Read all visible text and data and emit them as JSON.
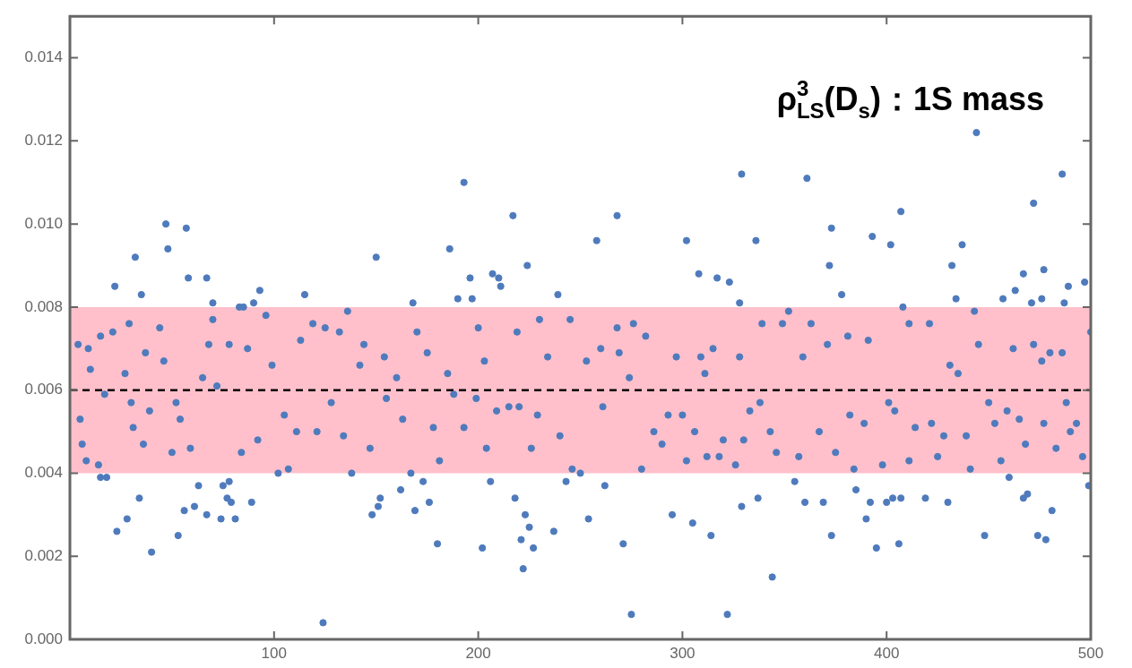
{
  "chart_data": {
    "type": "scatter",
    "annotations": [
      "ρ$^{3}$$_{LS}$(D$_{s}$)：1S mass"
    ],
    "x": [
      22,
      32,
      35,
      47,
      48,
      57,
      58,
      67,
      70,
      83,
      85,
      90,
      93,
      115,
      150,
      168,
      186,
      193,
      196,
      197,
      190,
      207,
      210,
      211,
      217,
      224,
      239,
      15,
      18,
      23,
      28,
      34,
      40,
      53,
      56,
      61,
      63,
      67,
      74,
      75,
      77,
      78,
      79,
      81,
      89,
      124,
      148,
      151,
      152,
      162,
      169,
      173,
      176,
      180,
      202,
      206,
      218,
      221,
      222,
      223,
      225,
      227,
      237,
      243,
      4,
      9,
      10,
      15,
      17,
      5,
      6,
      8,
      14,
      21,
      27,
      29,
      30,
      31,
      36,
      37,
      39,
      44,
      46,
      50,
      52,
      54,
      59,
      65,
      68,
      70,
      72,
      78,
      84,
      87,
      92,
      96,
      99,
      102,
      105,
      107,
      111,
      113,
      119,
      121,
      125,
      128,
      132,
      134,
      136,
      138,
      142,
      144,
      147,
      154,
      155,
      160,
      163,
      167,
      170,
      175,
      178,
      181,
      185,
      188,
      193,
      199,
      200,
      203,
      204,
      209,
      215,
      219,
      220,
      226,
      229,
      230,
      234,
      240,
      245,
      246,
      258,
      268,
      302,
      308,
      317,
      323,
      328,
      329,
      336,
      361,
      372,
      373,
      378,
      393,
      402,
      407,
      432,
      434,
      437,
      444,
      457,
      463,
      467,
      471,
      472,
      476,
      477,
      486,
      489,
      497,
      487,
      500,
      262,
      254,
      271,
      275,
      295,
      305,
      314,
      322,
      329,
      337,
      344,
      355,
      360,
      369,
      373,
      385,
      390,
      392,
      395,
      400,
      403,
      406,
      407,
      419,
      430,
      448,
      460,
      467,
      469,
      474,
      478,
      481,
      499,
      250,
      253,
      260,
      261,
      268,
      269,
      274,
      276,
      280,
      282,
      286,
      290,
      293,
      297,
      300,
      302,
      306,
      309,
      311,
      312,
      315,
      318,
      320,
      326,
      328,
      330,
      333,
      338,
      339,
      343,
      346,
      349,
      352,
      357,
      359,
      363,
      367,
      371,
      375,
      381,
      382,
      384,
      389,
      391,
      398,
      401,
      404,
      408,
      411,
      411,
      414,
      421,
      422,
      425,
      428,
      431,
      435,
      439,
      441,
      443,
      445,
      450,
      453,
      456,
      459,
      462,
      465,
      468,
      472,
      476,
      477,
      480,
      483,
      486,
      488,
      490,
      493,
      496
    ],
    "values": [
      0.0085,
      0.0092,
      0.0083,
      0.01,
      0.0094,
      0.0099,
      0.0087,
      0.0087,
      0.0081,
      0.008,
      0.008,
      0.0081,
      0.0084,
      0.0083,
      0.0092,
      0.0081,
      0.0094,
      0.011,
      0.0087,
      0.0082,
      0.0082,
      0.0088,
      0.0087,
      0.0085,
      0.0102,
      0.009,
      0.0083,
      0.0039,
      0.0039,
      0.0026,
      0.0029,
      0.0034,
      0.0021,
      0.0025,
      0.0031,
      0.0032,
      0.0037,
      0.003,
      0.0029,
      0.0037,
      0.0034,
      0.0038,
      0.0033,
      0.0029,
      0.0033,
      0.0004,
      0.003,
      0.0032,
      0.0034,
      0.0036,
      0.0031,
      0.0038,
      0.0033,
      0.0023,
      0.0022,
      0.0038,
      0.0034,
      0.0024,
      0.0017,
      0.003,
      0.0027,
      0.0022,
      0.0026,
      0.0038,
      0.0071,
      0.007,
      0.0065,
      0.0073,
      0.0059,
      0.0053,
      0.0047,
      0.0043,
      0.0042,
      0.0074,
      0.0064,
      0.0076,
      0.0057,
      0.0051,
      0.0047,
      0.0069,
      0.0055,
      0.0075,
      0.0067,
      0.0045,
      0.0057,
      0.0053,
      0.0046,
      0.0063,
      0.0071,
      0.0077,
      0.0061,
      0.0071,
      0.0045,
      0.007,
      0.0048,
      0.0078,
      0.0066,
      0.004,
      0.0054,
      0.0041,
      0.005,
      0.0072,
      0.0076,
      0.005,
      0.0075,
      0.0057,
      0.0074,
      0.0049,
      0.0079,
      0.004,
      0.0066,
      0.0071,
      0.0046,
      0.0068,
      0.0058,
      0.0063,
      0.0053,
      0.004,
      0.0074,
      0.0069,
      0.0051,
      0.0043,
      0.0064,
      0.0059,
      0.0051,
      0.0058,
      0.0075,
      0.0067,
      0.0046,
      0.0055,
      0.0056,
      0.0074,
      0.0056,
      0.0046,
      0.0054,
      0.0077,
      0.0068,
      0.0049,
      0.0077,
      0.0041,
      0.0096,
      0.0102,
      0.0096,
      0.0088,
      0.0087,
      0.0086,
      0.0081,
      0.0112,
      0.0096,
      0.0111,
      0.009,
      0.0099,
      0.0083,
      0.0097,
      0.0095,
      0.0103,
      0.009,
      0.0082,
      0.0095,
      0.0122,
      0.0082,
      0.0084,
      0.0088,
      0.0081,
      0.0105,
      0.0082,
      0.0089,
      0.0112,
      0.0085,
      0.0086,
      0.0081,
      0.0074,
      0.0037,
      0.0029,
      0.0023,
      0.0006,
      0.003,
      0.0028,
      0.0025,
      0.0006,
      0.0032,
      0.0034,
      0.0015,
      0.0038,
      0.0033,
      0.0033,
      0.0025,
      0.0036,
      0.0029,
      0.0033,
      0.0022,
      0.0033,
      0.0034,
      0.0023,
      0.0034,
      0.0034,
      0.0033,
      0.0025,
      0.0039,
      0.0034,
      0.0035,
      0.0025,
      0.0024,
      0.0031,
      0.0037,
      0.004,
      0.0067,
      0.007,
      0.0056,
      0.0075,
      0.0069,
      0.0063,
      0.0076,
      0.0041,
      0.0073,
      0.005,
      0.0047,
      0.0054,
      0.0068,
      0.0054,
      0.0043,
      0.005,
      0.0068,
      0.0064,
      0.0044,
      0.007,
      0.0044,
      0.0048,
      0.0042,
      0.0068,
      0.0048,
      0.0055,
      0.0057,
      0.0076,
      0.005,
      0.0045,
      0.0076,
      0.0079,
      0.0044,
      0.0068,
      0.0076,
      0.005,
      0.0071,
      0.0045,
      0.0073,
      0.0054,
      0.0041,
      0.0052,
      0.0072,
      0.0042,
      0.0057,
      0.0055,
      0.008,
      0.0043,
      0.0076,
      0.0051,
      0.0076,
      0.0052,
      0.0044,
      0.0049,
      0.0066,
      0.0064,
      0.0049,
      0.0041,
      0.0079,
      0.0071,
      0.0057,
      0.0052,
      0.0043,
      0.0055,
      0.007,
      0.0053,
      0.0047,
      0.0071,
      0.0067,
      0.0052,
      0.0069,
      0.0046,
      0.0069,
      0.0057,
      0.005,
      0.0052,
      0.0044
    ],
    "color": "#4f7bbd",
    "marker": "circle",
    "xlim": [
      0,
      500
    ],
    "xticks": [
      100,
      200,
      300,
      400,
      500
    ],
    "ylim": [
      0,
      0.015
    ],
    "yticks": [
      {
        "value": 0,
        "label": "0.000"
      },
      {
        "value": 0.002,
        "label": "0.002"
      },
      {
        "value": 0.004,
        "label": "0.004"
      },
      {
        "value": 0.006,
        "label": "0.006"
      },
      {
        "value": 0.008,
        "label": "0.008"
      },
      {
        "value": 0.01,
        "label": "0.010"
      },
      {
        "value": 0.012,
        "label": "0.012"
      },
      {
        "value": 0.014,
        "label": "0.014"
      }
    ],
    "bands": [
      {
        "axis": "y",
        "from": 0.004,
        "to": 0.008,
        "color": "#ffc0cb"
      }
    ],
    "ref_lines": [
      {
        "axis": "y",
        "value": 0.006,
        "color": "#000000",
        "line_style": "dashed"
      }
    ]
  }
}
